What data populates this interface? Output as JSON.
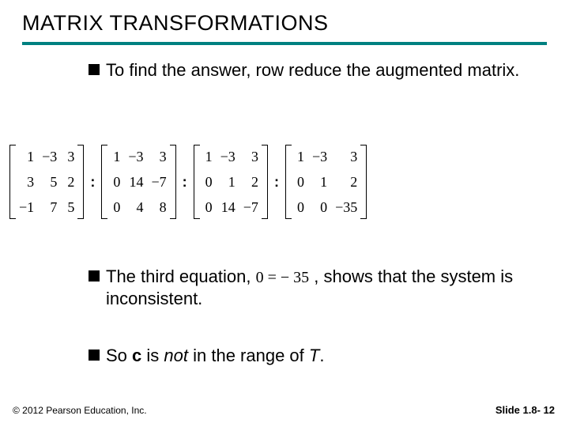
{
  "title": "MATRIX TRANSFORMATIONS",
  "title_underline_color": "#008080",
  "bullets": {
    "b1": "To find the answer, row reduce the augmented matrix.",
    "b2_pre": "The third equation, ",
    "b2_eq": "0 = − 35",
    "b2_post": " , shows that the system is inconsistent.",
    "b3_pre": "So ",
    "b3_c": "c",
    "b3_mid1": " is ",
    "b3_not": "not",
    "b3_mid2": " in the range of ",
    "b3_T": "T",
    "b3_end": "."
  },
  "matrices": {
    "m1": [
      [
        "1",
        "3",
        "−1"
      ],
      [
        "−3",
        "5",
        "7"
      ],
      [
        "3",
        "2",
        "5"
      ]
    ],
    "m2": [
      [
        "1",
        "0",
        "0"
      ],
      [
        "−3",
        "14",
        "4"
      ],
      [
        "3",
        "−7",
        "8"
      ]
    ],
    "m3": [
      [
        "1",
        "0",
        "0"
      ],
      [
        "−3",
        "1",
        "14"
      ],
      [
        "3",
        "2",
        "−7"
      ]
    ],
    "m4": [
      [
        "1",
        "0",
        "0"
      ],
      [
        "−3",
        "1",
        "0"
      ],
      [
        "3",
        "2",
        "−35"
      ]
    ]
  },
  "tilde": ":",
  "footer": {
    "left": "© 2012 Pearson Education, Inc.",
    "right_prefix": "Slide 1.8- ",
    "right_num": "12"
  },
  "style": {
    "title_fontsize": 27,
    "body_fontsize": 22,
    "matrix_fontsize": 18,
    "footer_fontsize": 12,
    "text_color": "#000000",
    "background_color": "#ffffff"
  }
}
